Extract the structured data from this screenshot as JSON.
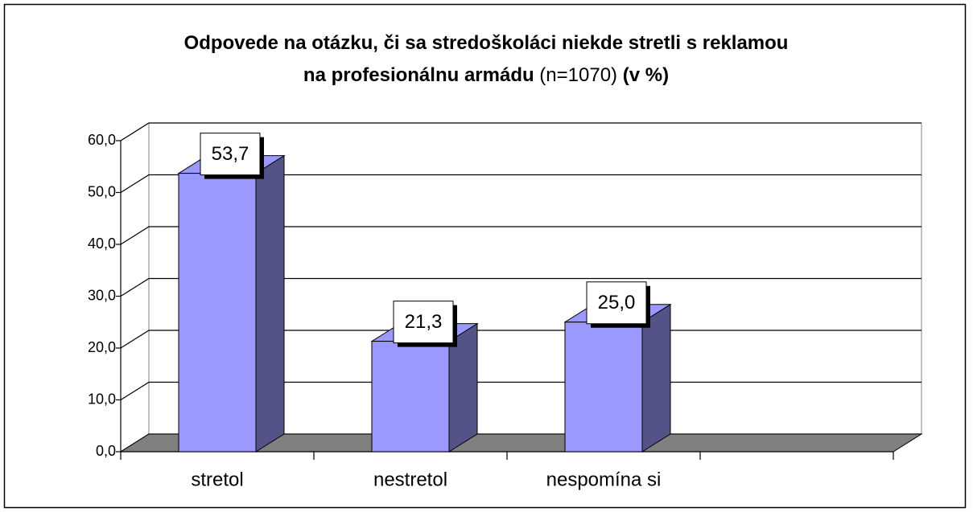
{
  "chart_data": {
    "type": "bar3d",
    "title": [
      [
        {
          "text": "Odpovede na otázku, či sa stredoškoláci niekde stretli s reklamou",
          "bold": true
        }
      ],
      [
        {
          "text": "na profesionálnu armádu",
          "bold": true
        },
        {
          "text": " (n=1070) ",
          "bold": false
        },
        {
          "text": "(v %)",
          "bold": true
        }
      ]
    ],
    "categories": [
      "stretol",
      "nestretol",
      "nespomína si",
      null
    ],
    "values": [
      53.7,
      21.3,
      25.0,
      null
    ],
    "value_labels": [
      "53,7",
      "21,3",
      "25,0",
      null
    ],
    "color": "#9999ff",
    "side_color": "#535388",
    "floor_color": "#808080",
    "ylim": [
      0,
      60
    ],
    "yticks": [
      {
        "value": 0,
        "label": "0,0"
      },
      {
        "value": 10,
        "label": "10,0"
      },
      {
        "value": 20,
        "label": "20,0"
      },
      {
        "value": 30,
        "label": "30,0"
      },
      {
        "value": 40,
        "label": "40,0"
      },
      {
        "value": 50,
        "label": "50,0"
      },
      {
        "value": 60,
        "label": "60,0"
      }
    ],
    "grid": true
  }
}
